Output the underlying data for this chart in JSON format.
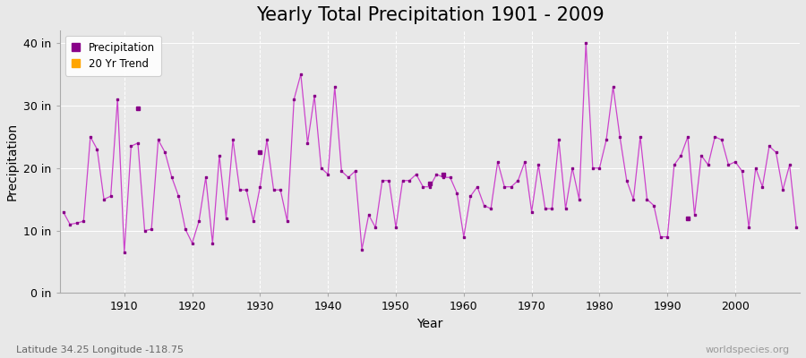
{
  "title": "Yearly Total Precipitation 1901 - 2009",
  "xlabel": "Year",
  "ylabel": "Precipitation",
  "subtitle": "Latitude 34.25 Longitude -118.75",
  "watermark": "worldspecies.org",
  "years": [
    1901,
    1902,
    1903,
    1904,
    1905,
    1906,
    1907,
    1908,
    1909,
    1910,
    1911,
    1912,
    1913,
    1914,
    1915,
    1916,
    1917,
    1918,
    1919,
    1920,
    1921,
    1922,
    1923,
    1924,
    1925,
    1926,
    1927,
    1928,
    1929,
    1930,
    1931,
    1932,
    1933,
    1934,
    1935,
    1936,
    1937,
    1938,
    1939,
    1940,
    1941,
    1942,
    1943,
    1944,
    1945,
    1946,
    1947,
    1948,
    1949,
    1950,
    1951,
    1952,
    1953,
    1954,
    1955,
    1956,
    1957,
    1958,
    1959,
    1960,
    1961,
    1962,
    1963,
    1964,
    1965,
    1966,
    1967,
    1968,
    1969,
    1970,
    1971,
    1972,
    1973,
    1974,
    1975,
    1976,
    1977,
    1978,
    1979,
    1980,
    1981,
    1982,
    1983,
    1984,
    1985,
    1986,
    1987,
    1988,
    1989,
    1990,
    1991,
    1992,
    1993,
    1994,
    1995,
    1996,
    1997,
    1998,
    1999,
    2000,
    2001,
    2002,
    2003,
    2004,
    2005,
    2006,
    2007,
    2008,
    2009
  ],
  "precipitation": [
    13.0,
    11.0,
    null,
    null,
    25.0,
    23.0,
    null,
    null,
    31.0,
    6.5,
    23.5,
    24.0,
    10.0,
    10.2,
    24.5,
    22.5,
    18.5,
    15.5,
    10.2,
    8.0,
    11.5,
    18.5,
    8.0,
    22.0,
    null,
    24.5,
    16.5,
    16.5,
    11.5,
    17.0,
    24.5,
    16.5,
    16.5,
    11.5,
    31.0,
    35.0,
    24.0,
    31.5,
    20.0,
    19.0,
    33.0,
    19.5,
    18.5,
    19.5,
    7.0,
    12.5,
    10.5,
    null,
    null,
    10.5,
    null,
    null,
    null,
    null,
    null,
    null,
    null,
    null,
    null,
    null,
    null,
    null,
    null,
    null,
    null,
    null,
    null,
    null,
    null,
    null,
    null,
    null,
    null,
    null,
    null,
    null,
    null,
    null,
    null,
    null,
    null,
    null,
    null,
    null,
    null,
    null,
    null,
    null,
    null,
    null,
    null,
    null,
    null,
    null,
    null,
    null,
    null,
    null,
    null,
    null,
    null,
    null,
    null,
    null,
    null,
    null,
    null,
    null,
    null
  ],
  "precip_full": [
    13.0,
    11.0,
    11.2,
    11.5,
    25.0,
    23.0,
    15.0,
    15.5,
    31.0,
    6.5,
    23.5,
    24.0,
    10.0,
    10.2,
    24.5,
    22.5,
    18.5,
    15.5,
    10.2,
    8.0,
    11.5,
    18.5,
    8.0,
    22.0,
    12.0,
    24.5,
    16.5,
    16.5,
    11.5,
    17.0,
    24.5,
    16.5,
    16.5,
    11.5,
    31.0,
    35.0,
    24.0,
    31.5,
    20.0,
    19.0,
    33.0,
    19.5,
    18.5,
    19.5,
    7.0,
    12.5,
    10.5,
    18.0,
    18.0,
    10.5,
    18.0,
    18.0,
    19.0,
    17.0,
    17.0,
    19.0,
    18.5,
    18.5,
    16.0,
    9.0,
    15.5,
    17.0,
    14.0,
    13.5,
    21.0,
    17.0,
    17.0,
    18.0,
    21.0,
    13.0,
    20.5,
    13.5,
    13.5,
    24.5,
    13.5,
    20.0,
    15.0,
    40.0,
    20.0,
    20.0,
    24.5,
    33.0,
    25.0,
    18.0,
    15.0,
    25.0,
    15.0,
    14.0,
    9.0,
    9.0,
    20.5,
    22.0,
    25.0,
    12.5,
    22.0,
    20.5,
    25.0,
    24.5,
    20.5,
    21.0,
    19.5,
    10.5,
    20.0,
    17.0,
    23.5,
    22.5,
    16.5,
    20.5,
    10.5
  ],
  "isolated_years": [
    1912,
    1930,
    1955,
    1957,
    1993
  ],
  "isolated_values": [
    29.5,
    22.5,
    17.5,
    19.0,
    12.0
  ],
  "ylim": [
    0,
    42
  ],
  "yticks": [
    0,
    10,
    20,
    30,
    40
  ],
  "ytick_labels": [
    "0 in",
    "10 in",
    "20 in",
    "30 in",
    "40 in"
  ],
  "xticks": [
    1910,
    1920,
    1930,
    1940,
    1950,
    1960,
    1970,
    1980,
    1990,
    2000
  ],
  "line_color": "#cc44cc",
  "marker_color": "#880088",
  "trend_color": "#FFA500",
  "bg_color": "#e8e8e8",
  "plot_bg": "#e8e8e8",
  "grid_color": "#ffffff",
  "title_fontsize": 15,
  "axis_fontsize": 10,
  "tick_fontsize": 9
}
